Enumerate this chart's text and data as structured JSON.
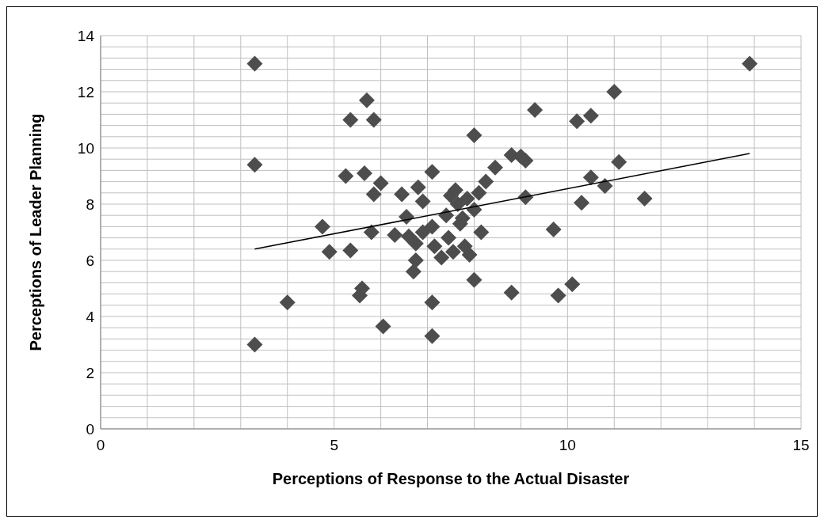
{
  "chart_data": {
    "type": "scatter",
    "xlabel": "Perceptions of Response to the Actual Disaster",
    "ylabel": "Perceptions of Leader Planning",
    "x": [
      3.3,
      3.3,
      3.3,
      4.0,
      4.75,
      4.9,
      5.25,
      5.35,
      5.35,
      5.55,
      5.6,
      5.65,
      5.7,
      5.8,
      5.85,
      5.85,
      6.0,
      6.05,
      6.3,
      6.45,
      6.55,
      6.6,
      6.7,
      6.75,
      6.75,
      6.8,
      6.9,
      6.9,
      7.1,
      7.1,
      7.1,
      7.1,
      7.15,
      7.3,
      7.4,
      7.45,
      7.5,
      7.55,
      7.6,
      7.65,
      7.7,
      7.75,
      7.8,
      7.85,
      7.9,
      8.0,
      8.0,
      8.0,
      8.1,
      8.15,
      8.25,
      8.45,
      8.8,
      8.8,
      9.0,
      9.1,
      9.1,
      9.3,
      9.7,
      9.8,
      10.1,
      10.2,
      10.3,
      10.5,
      10.5,
      10.8,
      11.0,
      11.1,
      11.65,
      13.9
    ],
    "series": [
      {
        "color": "#4d4d4d",
        "marker": "diamond",
        "values": [
          13.0,
          9.4,
          3.0,
          4.5,
          7.2,
          6.3,
          9.0,
          11.0,
          6.35,
          4.75,
          5.0,
          9.1,
          11.7,
          7.0,
          8.35,
          11.0,
          8.75,
          3.65,
          6.9,
          8.35,
          7.55,
          6.85,
          5.6,
          6.0,
          6.6,
          8.6,
          8.1,
          7.0,
          9.15,
          7.2,
          4.5,
          3.3,
          6.5,
          6.1,
          7.6,
          6.8,
          8.3,
          6.3,
          8.5,
          8.0,
          7.3,
          7.5,
          6.5,
          8.2,
          6.2,
          10.45,
          7.8,
          5.3,
          8.4,
          7.0,
          8.8,
          9.3,
          9.75,
          4.85,
          9.7,
          9.55,
          8.25,
          11.35,
          7.1,
          4.75,
          5.15,
          10.95,
          8.05,
          11.15,
          8.95,
          8.65,
          12.0,
          9.5,
          8.2,
          13.0
        ]
      },
      {
        "type": "line",
        "color": "#000000",
        "marker": "none",
        "x": [
          3.3,
          13.9
        ],
        "values": [
          6.4,
          9.8
        ]
      }
    ],
    "xlim": [
      0,
      15
    ],
    "xticks": [
      0,
      {
        "value": 1,
        "label": null
      },
      {
        "value": 2,
        "label": null
      },
      {
        "value": 3,
        "label": null
      },
      {
        "value": 4,
        "label": null
      },
      5,
      {
        "value": 6,
        "label": null
      },
      {
        "value": 7,
        "label": null
      },
      {
        "value": 8,
        "label": null
      },
      {
        "value": 9,
        "label": null
      },
      10,
      {
        "value": 11,
        "label": null
      },
      {
        "value": 12,
        "label": null
      },
      {
        "value": 13,
        "label": null
      },
      {
        "value": 14,
        "label": null
      },
      15
    ],
    "ylim": [
      0,
      14
    ],
    "yticks": [
      0,
      {
        "value": 0.4,
        "label": null
      },
      {
        "value": 0.8,
        "label": null
      },
      {
        "value": 1.2,
        "label": null
      },
      {
        "value": 1.6,
        "label": null
      },
      2,
      {
        "value": 2.4,
        "label": null
      },
      {
        "value": 2.8,
        "label": null
      },
      {
        "value": 3.2,
        "label": null
      },
      {
        "value": 3.6,
        "label": null
      },
      4,
      {
        "value": 4.4,
        "label": null
      },
      {
        "value": 4.8,
        "label": null
      },
      {
        "value": 5.2,
        "label": null
      },
      {
        "value": 5.6,
        "label": null
      },
      6,
      {
        "value": 6.4,
        "label": null
      },
      {
        "value": 6.8,
        "label": null
      },
      {
        "value": 7.2,
        "label": null
      },
      {
        "value": 7.6,
        "label": null
      },
      8,
      {
        "value": 8.4,
        "label": null
      },
      {
        "value": 8.8,
        "label": null
      },
      {
        "value": 9.2,
        "label": null
      },
      {
        "value": 9.6,
        "label": null
      },
      10,
      {
        "value": 10.4,
        "label": null
      },
      {
        "value": 10.8,
        "label": null
      },
      {
        "value": 11.2,
        "label": null
      },
      {
        "value": 11.6,
        "label": null
      },
      12,
      {
        "value": 12.4,
        "label": null
      },
      {
        "value": 12.8,
        "label": null
      },
      {
        "value": 13.2,
        "label": null
      },
      {
        "value": 13.6,
        "label": null
      },
      14
    ],
    "grid": true
  }
}
